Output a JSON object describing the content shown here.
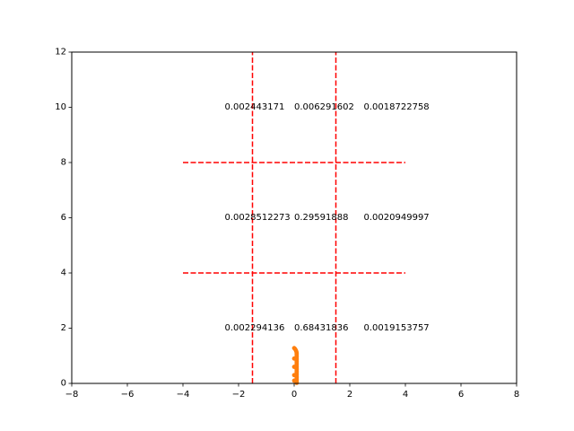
{
  "chart_data": {
    "type": "scatter",
    "title": "",
    "xlabel": "",
    "ylabel": "",
    "xlim": [
      -8,
      8
    ],
    "ylim": [
      0,
      12
    ],
    "xticks": [
      -8,
      -6,
      -4,
      -2,
      0,
      2,
      4,
      6,
      8
    ],
    "yticks": [
      0,
      2,
      4,
      6,
      8,
      10,
      12
    ],
    "grid": false,
    "colors": {
      "reference_lines": "#ff0000",
      "points": "#ff7f0e",
      "axes": "#000000"
    },
    "vertical_lines": [
      {
        "x": -1.5,
        "y": [
          0,
          12
        ]
      },
      {
        "x": 1.5,
        "y": [
          0,
          12
        ]
      }
    ],
    "horizontal_lines": [
      {
        "y": 4,
        "x": [
          -4,
          4
        ]
      },
      {
        "y": 8,
        "x": [
          -4,
          4
        ]
      }
    ],
    "cell_labels": [
      {
        "text": "0.002294136",
        "x": -2.5,
        "y": 2
      },
      {
        "text": "0.68431836",
        "x": 0,
        "y": 2
      },
      {
        "text": "0.0019153757",
        "x": 2.5,
        "y": 2
      },
      {
        "text": "0.0028512273",
        "x": -2.5,
        "y": 6
      },
      {
        "text": "0.29591888",
        "x": 0,
        "y": 6
      },
      {
        "text": "0.0020949997",
        "x": 2.5,
        "y": 6
      },
      {
        "text": "0.002443171",
        "x": -2.5,
        "y": 10
      },
      {
        "text": "0.006291602",
        "x": 0,
        "y": 10
      },
      {
        "text": "0.0018722758",
        "x": 2.5,
        "y": 10
      }
    ],
    "points": [
      {
        "x": 0.0,
        "y": 1.28
      },
      {
        "x": 0.03,
        "y": 1.25
      },
      {
        "x": 0.06,
        "y": 1.2
      },
      {
        "x": 0.08,
        "y": 1.15
      },
      {
        "x": 0.09,
        "y": 1.1
      },
      {
        "x": 0.09,
        "y": 1.05
      },
      {
        "x": 0.09,
        "y": 1.0
      },
      {
        "x": 0.09,
        "y": 0.95
      },
      {
        "x": 0.09,
        "y": 0.9
      },
      {
        "x": 0.09,
        "y": 0.85
      },
      {
        "x": 0.09,
        "y": 0.8
      },
      {
        "x": 0.09,
        "y": 0.75
      },
      {
        "x": 0.09,
        "y": 0.7
      },
      {
        "x": 0.09,
        "y": 0.65
      },
      {
        "x": 0.09,
        "y": 0.6
      },
      {
        "x": 0.09,
        "y": 0.55
      },
      {
        "x": 0.09,
        "y": 0.5
      },
      {
        "x": 0.09,
        "y": 0.45
      },
      {
        "x": 0.09,
        "y": 0.4
      },
      {
        "x": 0.09,
        "y": 0.35
      },
      {
        "x": 0.09,
        "y": 0.3
      },
      {
        "x": 0.09,
        "y": 0.25
      },
      {
        "x": 0.09,
        "y": 0.2
      },
      {
        "x": 0.09,
        "y": 0.15
      },
      {
        "x": 0.09,
        "y": 0.1
      },
      {
        "x": 0.09,
        "y": 0.05
      },
      {
        "x": 0.09,
        "y": 0.02
      },
      {
        "x": 0.0,
        "y": 0.9
      },
      {
        "x": 0.0,
        "y": 0.6
      },
      {
        "x": 0.0,
        "y": 0.3
      },
      {
        "x": 0.0,
        "y": 0.1
      }
    ]
  }
}
